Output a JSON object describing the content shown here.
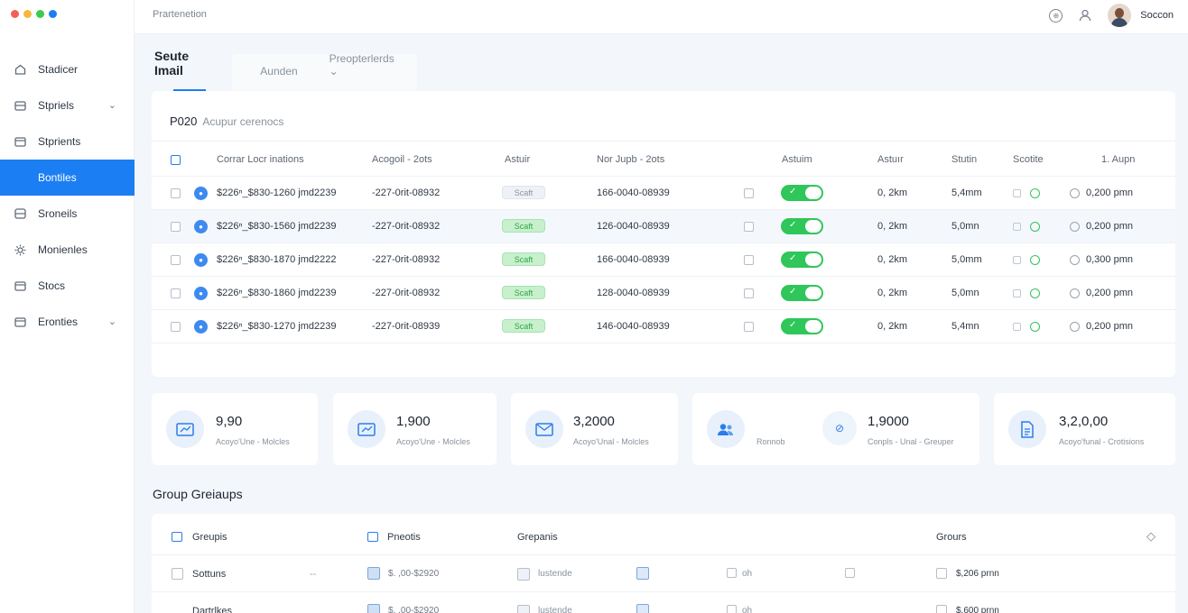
{
  "window": {
    "dots": [
      "#f25f58",
      "#f6b73c",
      "#3ec94f",
      "#1c7ef3"
    ]
  },
  "topbar": {
    "breadcrumb": "Prartenetion",
    "user_name": "Soccon"
  },
  "sidebar": {
    "items": [
      {
        "label": "Stadicer",
        "icon": "home-icon"
      },
      {
        "label": "Stpriels",
        "icon": "folder-icon",
        "chevron": true
      },
      {
        "label": "Stprients",
        "icon": "folder-icon"
      },
      {
        "label": "Bontiles",
        "icon": "layers-icon",
        "active": true
      },
      {
        "label": "Sroneils",
        "icon": "stack-icon"
      },
      {
        "label": "Monienles",
        "icon": "gear-icon"
      },
      {
        "label": "Stocs",
        "icon": "folder-icon"
      },
      {
        "label": "Eronties",
        "icon": "folder-icon",
        "chevron": true
      }
    ]
  },
  "tabs": [
    {
      "label": "Seute Imail",
      "active": true
    },
    {
      "label": "Aunden"
    },
    {
      "label": "Preopterlerds ⌄"
    }
  ],
  "section": {
    "title": "P020",
    "subtitle": "Acupur cerenocs"
  },
  "table": {
    "headers": [
      "Corrar Locr inations",
      "Acogoil - 2ots",
      "Astuir",
      "Nor Jupb - 2ots",
      "Astuim",
      "Astuır",
      "Stutin",
      "Scotite",
      "1. Aupn"
    ],
    "rows": [
      {
        "email": "$226ⁿ_$830-1260 jmd2239",
        "acct": "-227-0rit-08932",
        "badge": "Scaft",
        "badge_style": "grey",
        "phone": "166-0040-08939",
        "dist": "0, 2km",
        "size": "5,4mm",
        "time": "0,200 pmn"
      },
      {
        "email": "$226ⁿ_$830-1560 jmd2239",
        "acct": "-227-0rit-08932",
        "badge": "Scaft",
        "badge_style": "green",
        "phone": "126-0040-08939",
        "dist": "0, 2km",
        "size": "5,0mn",
        "time": "0,200 pmn"
      },
      {
        "email": "$226ⁿ_$830-1870 jmd2222",
        "acct": "-227-0rit-08932",
        "badge": "Scaft",
        "badge_style": "green",
        "phone": "166-0040-08939",
        "dist": "0, 2km",
        "size": "5,0mm",
        "time": "0,300 pmn"
      },
      {
        "email": "$226ⁿ_$830-1860 jmd2239",
        "acct": "-227-0rit-08932",
        "badge": "Scaft",
        "badge_style": "green",
        "phone": "128-0040-08939",
        "dist": "0, 2km",
        "size": "5,0mn",
        "time": "0,200 pmn"
      },
      {
        "email": "$226ⁿ_$830-1270 jmd2239",
        "acct": "-227-0rit-08939",
        "badge": "Scaft",
        "badge_style": "green",
        "phone": "146-0040-08939",
        "dist": "0, 2km",
        "size": "5,4mn",
        "time": "0,200 pmn"
      }
    ]
  },
  "stats": [
    {
      "value": "9,90",
      "label": "Acoyo'Une - Molcles",
      "icon": "mail-icon"
    },
    {
      "value": "1,900",
      "label": "Acoyo'Une - Molcles",
      "icon": "mail-icon"
    },
    {
      "value": "3,2000",
      "label": "Acoyo'Unal - Molcles",
      "icon": "mail-icon"
    },
    {
      "value": "1,9000",
      "label": "Conpls - Unal - Greuper",
      "sublabel": "Ronnob",
      "icon": "users-icon"
    },
    {
      "value": "3,2,0,00",
      "label": "Acoyo'funal - Crotisions",
      "icon": "document-icon"
    }
  ],
  "groups": {
    "title": "Group Greiaups",
    "headers": [
      "Greupis",
      "Pneotis",
      "Grepanis",
      "Grours"
    ],
    "rows": [
      {
        "name": "Sottuns",
        "dash": "--",
        "amount": "$. ,00-$2920",
        "type": "lustende",
        "unit": "oh",
        "price": "$,206 prnn"
      },
      {
        "name": "Dartrlkes",
        "dash": "",
        "amount": "$. ,00-$2920",
        "type": "lustende",
        "unit": "oh",
        "price": "$,600 prnn"
      }
    ]
  }
}
